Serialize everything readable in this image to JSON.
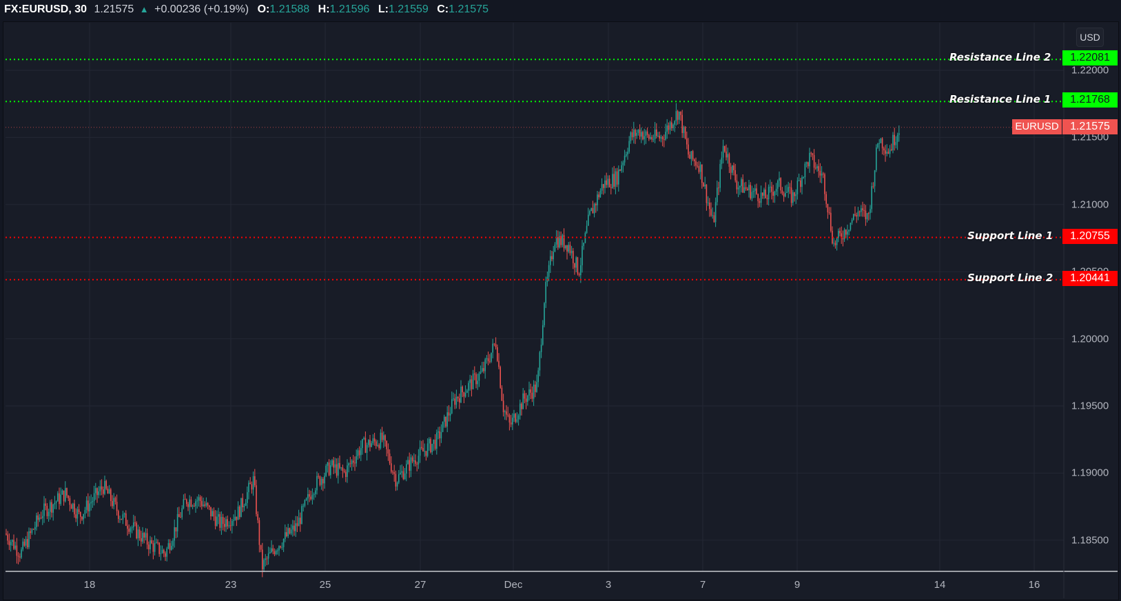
{
  "header": {
    "symbol": "FX:EURUSD, 30",
    "last": "1.21575",
    "direction_icon": "triangle-up-icon",
    "change": "+0.00236 (+0.19%)",
    "ohlc": [
      {
        "key": "O:",
        "value": "1.21588"
      },
      {
        "key": "H:",
        "value": "1.21596"
      },
      {
        "key": "L:",
        "value": "1.21559"
      },
      {
        "key": "C:",
        "value": "1.21575"
      }
    ]
  },
  "currency_button": "USD",
  "colors": {
    "background": "#181c27",
    "up": "#26a69a",
    "down": "#ef5350",
    "resistance": "#00ff00",
    "support": "#ff0000",
    "last_price": "#ef5350",
    "grid": "#232734"
  },
  "price_tags": {
    "resistance_2": "1.22081",
    "resistance_1": "1.21768",
    "last": "1.21575",
    "last_symbol": "EURUSD",
    "support_1": "1.20755",
    "support_2": "1.20441"
  },
  "line_labels": {
    "resistance_2": "Resistance Line 2",
    "resistance_1": "Resistance Line 1",
    "support_1": "Support Line 1",
    "support_2": "Support Line 2"
  },
  "chart_data": {
    "type": "candlestick",
    "title": "FX:EURUSD, 30",
    "interval": "30 min",
    "xlabel": "",
    "ylabel": "USD",
    "x_ticks": [
      "18",
      "23",
      "25",
      "27",
      "Dec",
      "3",
      "7",
      "9",
      "14",
      "16"
    ],
    "y_ticks": [
      "1.22000",
      "1.21500",
      "1.21000",
      "1.20500",
      "1.20000",
      "1.19500",
      "1.19000",
      "1.18500"
    ],
    "ylim": [
      1.1825,
      1.2245
    ],
    "grid": true,
    "horizontal_lines": [
      {
        "name": "Resistance Line 2",
        "value": 1.22081,
        "color": "#00ff00",
        "style": "dotted"
      },
      {
        "name": "Resistance Line 1",
        "value": 1.21768,
        "color": "#00ff00",
        "style": "dotted"
      },
      {
        "name": "EURUSD last",
        "value": 1.21575,
        "color": "#ef5350",
        "style": "dotted"
      },
      {
        "name": "Support Line 1",
        "value": 1.20755,
        "color": "#ff0000",
        "style": "dotted"
      },
      {
        "name": "Support Line 2",
        "value": 1.20441,
        "color": "#ff0000",
        "style": "dotted"
      }
    ],
    "approx_close_path": [
      {
        "date": "Nov 16",
        "close": 1.1855
      },
      {
        "date": "Nov 17",
        "close": 1.188
      },
      {
        "date": "Nov 18",
        "close": 1.187
      },
      {
        "date": "Nov 19",
        "close": 1.185
      },
      {
        "date": "Nov 20",
        "close": 1.187
      },
      {
        "date": "Nov 23",
        "close": 1.184
      },
      {
        "date": "Nov 24",
        "close": 1.188
      },
      {
        "date": "Nov 25",
        "close": 1.1915
      },
      {
        "date": "Nov 26",
        "close": 1.192
      },
      {
        "date": "Nov 27",
        "close": 1.1915
      },
      {
        "date": "Nov 30",
        "close": 1.194
      },
      {
        "date": "Dec 1",
        "close": 1.207
      },
      {
        "date": "Dec 2",
        "close": 1.211
      },
      {
        "date": "Dec 3",
        "close": 1.2145
      },
      {
        "date": "Dec 4",
        "close": 1.2155
      },
      {
        "date": "Dec 7",
        "close": 1.211
      },
      {
        "date": "Dec 8",
        "close": 1.2105
      },
      {
        "date": "Dec 9",
        "close": 1.21
      },
      {
        "date": "Dec 10",
        "close": 1.213
      },
      {
        "date": "Dec 11",
        "close": 1.21575
      }
    ],
    "high": 1.2177,
    "low": 1.1825
  }
}
